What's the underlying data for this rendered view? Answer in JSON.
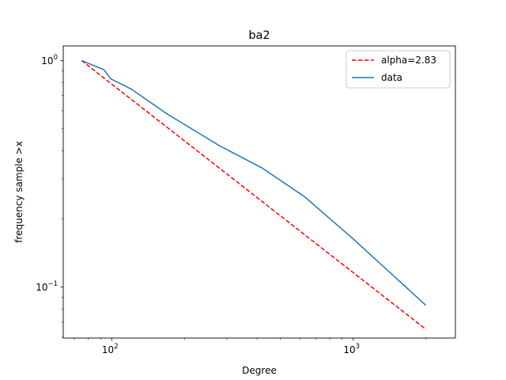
{
  "chart_data": {
    "type": "line",
    "title": "ba2",
    "xlabel": "Degree",
    "ylabel": "frequency sample >x",
    "xscale": "log",
    "yscale": "log",
    "xlim": [
      63,
      2650
    ],
    "ylim": [
      0.0595,
      1.16
    ],
    "grid": false,
    "legend_position": "top-right",
    "x_ticks": [
      {
        "value": 100,
        "base": "10",
        "exp": "2"
      },
      {
        "value": 1000,
        "base": "10",
        "exp": "3"
      }
    ],
    "y_ticks": [
      {
        "value": 0.1,
        "base": "10",
        "exp": "−1"
      },
      {
        "value": 1,
        "base": "10",
        "exp": "0"
      }
    ],
    "series": [
      {
        "name": "alpha=2.83",
        "color": "#ff0000",
        "style": "dashed",
        "x": [
          75,
          2000
        ],
        "y": [
          1.0,
          0.065
        ]
      },
      {
        "name": "data",
        "color": "#1f77b4",
        "style": "solid",
        "x": [
          75,
          93,
          99,
          120,
          170,
          280,
          420,
          630,
          1000,
          2000
        ],
        "y": [
          1.0,
          0.91,
          0.83,
          0.75,
          0.58,
          0.42,
          0.335,
          0.25,
          0.163,
          0.083
        ]
      }
    ]
  }
}
